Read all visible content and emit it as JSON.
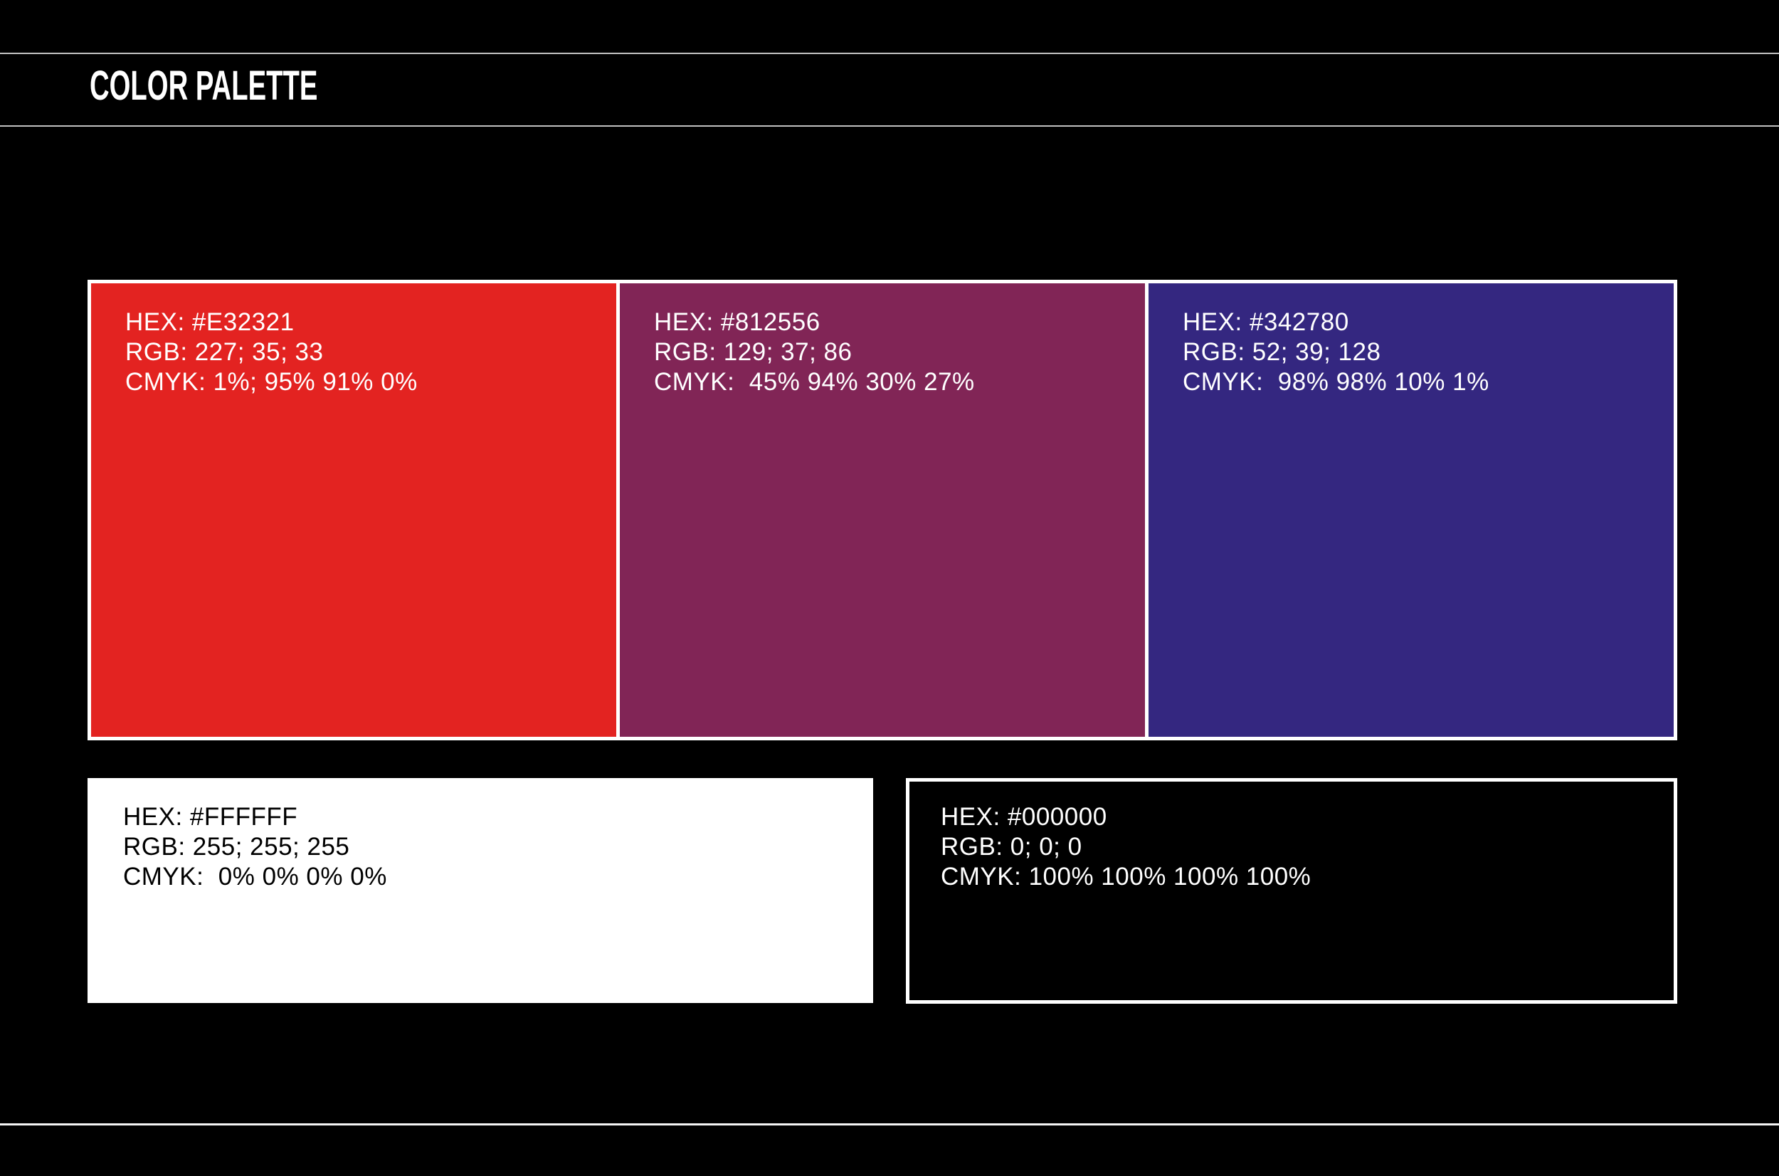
{
  "page": {
    "title": "COLOR PALETTE"
  },
  "colors": {
    "background": "#000000",
    "top_rule": "#c2c2c2",
    "title_rule": "#c2c2c2",
    "bottom_rule": "#f5f5f5",
    "swatch_frame": "#ffffff"
  },
  "swatches": {
    "large": [
      {
        "name": "red",
        "color": "#E32321",
        "text_color": "#FFFFFF",
        "hex": "HEX: #E32321",
        "rgb": "RGB: 227; 35; 33",
        "cmyk": "CMYK: 1%; 95% 91% 0%"
      },
      {
        "name": "purple",
        "color": "#812556",
        "text_color": "#FFFFFF",
        "hex": "HEX: #812556",
        "rgb": "RGB: 129; 37; 86",
        "cmyk": "CMYK:  45% 94% 30% 27%"
      },
      {
        "name": "blue",
        "color": "#342780",
        "text_color": "#FFFFFF",
        "hex": "HEX: #342780",
        "rgb": "RGB: 52; 39; 128",
        "cmyk": "CMYK:  98% 98% 10% 1%"
      }
    ],
    "small": [
      {
        "name": "white",
        "color": "#FFFFFF",
        "text_color": "#000000",
        "hex": "HEX: #FFFFFF",
        "rgb": "RGB: 255; 255; 255",
        "cmyk": "CMYK:  0% 0% 0% 0%"
      },
      {
        "name": "black",
        "color": "#000000",
        "text_color": "#FFFFFF",
        "hex": "HEX: #000000",
        "rgb": "RGB: 0; 0; 0",
        "cmyk": "CMYK: 100% 100% 100% 100%"
      }
    ]
  }
}
